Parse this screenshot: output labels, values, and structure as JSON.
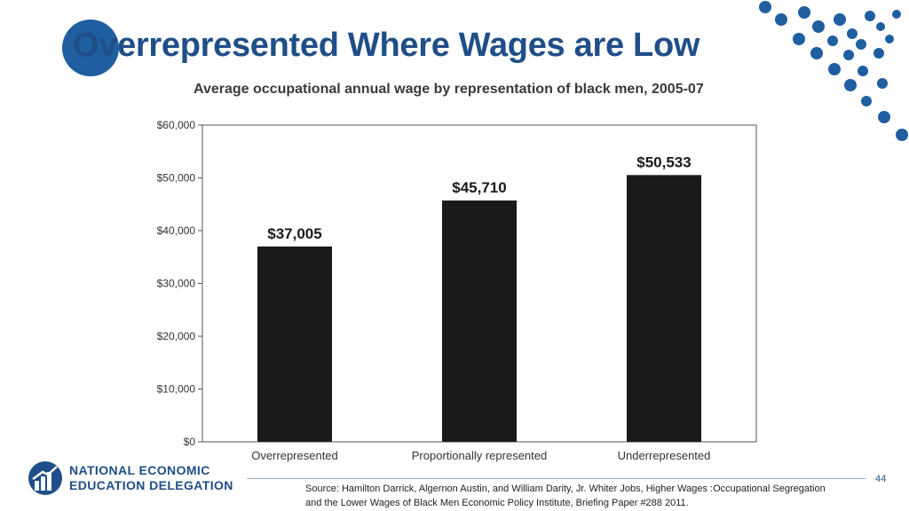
{
  "slide": {
    "title": "Overrepresented Where Wages are Low",
    "page_number": "44",
    "source_line1": "Source: Hamilton Darrick, Algernon Austin, and William Darity, Jr. Whiter Jobs, Higher Wages :Occupational Segregation",
    "source_line2": "and the Lower Wages of Black Men Economic Policy Institute, Briefing Paper #288 2011.",
    "logo_line1": "NATIONAL ECONOMIC",
    "logo_line2": "EDUCATION DELEGATION",
    "accent_color": "#1f5fa0"
  },
  "chart_data": {
    "type": "bar",
    "title": "Average occupational annual wage by representation of black men, 2005-07",
    "categories": [
      "Overrepresented",
      "Proportionally represented",
      "Underrepresented"
    ],
    "values": [
      37005,
      45710,
      50533
    ],
    "value_labels": [
      "$37,005",
      "$45,710",
      "$50,533"
    ],
    "ylim": [
      0,
      60000
    ],
    "yticks": [
      0,
      10000,
      20000,
      30000,
      40000,
      50000,
      60000
    ],
    "ytick_labels": [
      "$0",
      "$10,000",
      "$20,000",
      "$30,000",
      "$40,000",
      "$50,000",
      "$60,000"
    ],
    "grid": false,
    "bar_color": "#1a1a1a"
  }
}
